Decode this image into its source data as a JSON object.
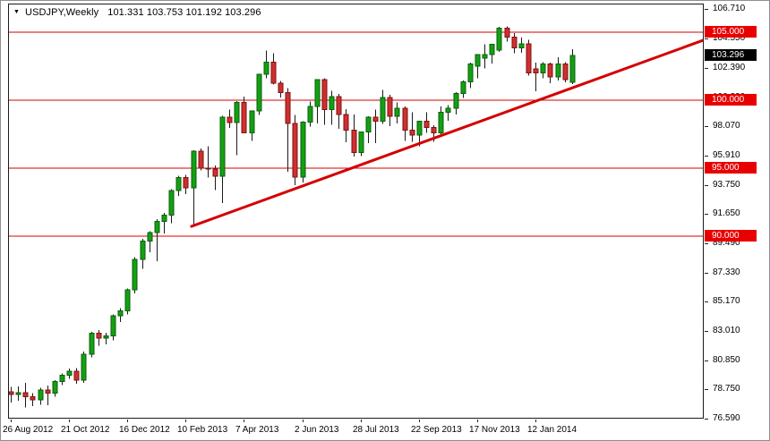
{
  "title": {
    "dropdown_icon": "▼",
    "symbol_period": "USDJPY,Weekly",
    "ohlc_text": "101.331 103.753 101.192 103.296"
  },
  "colors": {
    "bull_fill": "#12a112",
    "bull_border": "#0b5d0b",
    "bear_fill": "#d02f2f",
    "bear_border": "#7e1212",
    "wick": "#1a1a1a",
    "level_line": "#d40000",
    "trendline": "#d40000",
    "level_badge_bg": "#e80000",
    "level_badge_text": "#ffffff",
    "current_badge_bg": "#000000",
    "current_badge_text": "#ffffff"
  },
  "chart_data": {
    "type": "candlestick",
    "symbol": "USDJPY",
    "timeframe": "Weekly",
    "grid": false,
    "legend_position": "none",
    "current_ohlc": {
      "open": 101.331,
      "high": 103.753,
      "low": 101.192,
      "close": 103.296
    },
    "y_axis_range": [
      76.0,
      107.0
    ],
    "y_ticks": [
      {
        "label": "106.710",
        "value": 106.71
      },
      {
        "label": "104.550",
        "value": 104.55
      },
      {
        "label": "102.390",
        "value": 102.39
      },
      {
        "label": "100.230",
        "value": 100.23
      },
      {
        "label": "98.070",
        "value": 98.07
      },
      {
        "label": "95.910",
        "value": 95.91
      },
      {
        "label": "93.750",
        "value": 93.75
      },
      {
        "label": "91.650",
        "value": 91.65
      },
      {
        "label": "89.490",
        "value": 89.49
      },
      {
        "label": "87.330",
        "value": 87.33
      },
      {
        "label": "85.170",
        "value": 85.17
      },
      {
        "label": "83.010",
        "value": 83.01
      },
      {
        "label": "80.850",
        "value": 80.85
      },
      {
        "label": "78.750",
        "value": 78.75
      },
      {
        "label": "76.590",
        "value": 76.59
      }
    ],
    "x_ticks": [
      {
        "text": "26 Aug 2012",
        "bar": 0
      },
      {
        "text": "21 Oct 2012",
        "bar": 8
      },
      {
        "text": "16 Dec 2012",
        "bar": 16
      },
      {
        "text": "10 Feb 2013",
        "bar": 24
      },
      {
        "text": "7 Apr 2013",
        "bar": 32
      },
      {
        "text": "2 Jun 2013",
        "bar": 40
      },
      {
        "text": "28 Jul 2013",
        "bar": 48
      },
      {
        "text": "22 Sep 2013",
        "bar": 56
      },
      {
        "text": "17 Nov 2013",
        "bar": 64
      },
      {
        "text": "12 Jan 2014",
        "bar": 72
      }
    ],
    "levels": [
      {
        "label": "105.000",
        "value": 105.0
      },
      {
        "label": "100.000",
        "value": 100.0
      },
      {
        "label": "95.000",
        "value": 95.0
      },
      {
        "label": "90.000",
        "value": 90.0
      }
    ],
    "current_price": {
      "label": "103.296",
      "value": 103.296
    },
    "trendline": {
      "from_bar": 24.8,
      "from_price": 90.72,
      "to_bar": 96.0,
      "to_price": 104.6
    },
    "bars": [
      [
        78.55,
        78.9,
        77.75,
        78.35
      ],
      [
        78.35,
        78.95,
        77.9,
        78.5
      ],
      [
        78.5,
        79.2,
        77.4,
        78.2
      ],
      [
        78.2,
        78.45,
        77.5,
        77.95
      ],
      [
        77.95,
        78.85,
        77.6,
        78.7
      ],
      [
        78.7,
        79.0,
        77.55,
        78.45
      ],
      [
        78.45,
        79.4,
        78.2,
        79.3
      ],
      [
        79.3,
        79.9,
        79.05,
        79.78
      ],
      [
        79.78,
        80.25,
        79.5,
        80.05
      ],
      [
        80.05,
        80.3,
        79.15,
        79.4
      ],
      [
        79.4,
        81.5,
        79.2,
        81.3
      ],
      [
        81.3,
        82.95,
        81.1,
        82.85
      ],
      [
        82.85,
        83.1,
        81.95,
        82.5
      ],
      [
        82.5,
        82.9,
        82.05,
        82.65
      ],
      [
        82.65,
        84.25,
        82.35,
        84.15
      ],
      [
        84.15,
        84.7,
        83.7,
        84.5
      ],
      [
        84.5,
        86.15,
        84.25,
        86.05
      ],
      [
        86.05,
        88.45,
        85.8,
        88.3
      ],
      [
        88.3,
        89.8,
        87.6,
        89.65
      ],
      [
        89.65,
        90.35,
        88.8,
        90.25
      ],
      [
        90.25,
        91.25,
        88.15,
        91.1
      ],
      [
        91.1,
        91.7,
        90.2,
        91.55
      ],
      [
        91.55,
        93.45,
        90.95,
        93.35
      ],
      [
        93.35,
        94.45,
        92.95,
        94.3
      ],
      [
        94.3,
        94.5,
        93.1,
        93.55
      ],
      [
        93.55,
        96.3,
        90.75,
        96.25
      ],
      [
        96.25,
        96.45,
        94.85,
        95.0
      ],
      [
        95.0,
        96.6,
        94.3,
        94.95
      ],
      [
        94.95,
        95.2,
        93.4,
        94.4
      ],
      [
        94.4,
        98.85,
        92.45,
        98.75
      ],
      [
        98.75,
        99.3,
        97.95,
        98.35
      ],
      [
        98.35,
        99.95,
        95.95,
        99.85
      ],
      [
        99.85,
        100.25,
        97.55,
        97.6
      ],
      [
        97.6,
        99.25,
        97.0,
        99.2
      ],
      [
        99.2,
        101.95,
        98.9,
        101.9
      ],
      [
        101.9,
        103.65,
        101.6,
        102.8
      ],
      [
        102.8,
        103.45,
        101.15,
        101.25
      ],
      [
        101.25,
        101.4,
        100.2,
        100.55
      ],
      [
        100.55,
        100.9,
        94.75,
        98.3
      ],
      [
        98.3,
        98.9,
        93.75,
        94.35
      ],
      [
        94.35,
        98.45,
        93.95,
        98.4
      ],
      [
        98.4,
        99.9,
        98.05,
        99.55
      ],
      [
        99.55,
        101.55,
        98.3,
        101.5
      ],
      [
        101.5,
        101.6,
        98.2,
        99.3
      ],
      [
        99.3,
        100.7,
        98.2,
        100.25
      ],
      [
        100.25,
        100.45,
        97.9,
        98.95
      ],
      [
        98.95,
        99.35,
        96.9,
        97.8
      ],
      [
        97.8,
        98.95,
        95.85,
        96.15
      ],
      [
        96.15,
        97.7,
        95.9,
        97.65
      ],
      [
        97.65,
        98.8,
        96.85,
        98.75
      ],
      [
        98.75,
        99.3,
        96.85,
        98.45
      ],
      [
        98.45,
        100.75,
        98.25,
        100.2
      ],
      [
        100.2,
        100.4,
        98.1,
        98.8
      ],
      [
        98.8,
        99.85,
        98.3,
        99.4
      ],
      [
        99.4,
        99.55,
        97.0,
        97.8
      ],
      [
        97.8,
        99.1,
        96.95,
        97.45
      ],
      [
        97.45,
        98.5,
        96.6,
        98.45
      ],
      [
        98.45,
        99.1,
        97.6,
        98.0
      ],
      [
        98.0,
        98.15,
        96.95,
        97.6
      ],
      [
        97.6,
        99.55,
        97.3,
        99.1
      ],
      [
        99.1,
        99.65,
        98.5,
        99.4
      ],
      [
        99.4,
        100.6,
        98.95,
        100.5
      ],
      [
        100.5,
        101.45,
        100.15,
        101.35
      ],
      [
        101.35,
        102.75,
        100.9,
        102.65
      ],
      [
        102.5,
        103.4,
        101.6,
        103.35
      ],
      [
        103.1,
        104.1,
        102.35,
        103.35
      ],
      [
        103.35,
        104.15,
        102.7,
        104.1
      ],
      [
        103.7,
        105.4,
        103.55,
        105.3
      ],
      [
        105.3,
        105.44,
        104.3,
        104.65
      ],
      [
        104.65,
        104.95,
        103.45,
        103.85
      ],
      [
        103.85,
        104.6,
        103.5,
        104.15
      ],
      [
        104.15,
        104.45,
        101.8,
        102.0
      ],
      [
        102.3,
        102.75,
        100.65,
        102.02
      ],
      [
        102.02,
        102.8,
        101.6,
        102.65
      ],
      [
        102.65,
        102.75,
        101.25,
        101.7
      ],
      [
        101.7,
        103.15,
        101.45,
        102.65
      ],
      [
        102.65,
        102.8,
        101.3,
        101.5
      ],
      [
        101.331,
        103.753,
        101.192,
        103.296
      ]
    ]
  }
}
